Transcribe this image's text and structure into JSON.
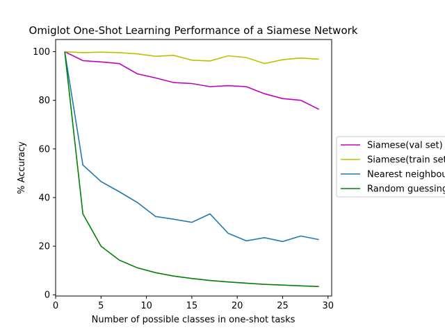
{
  "chart_data": {
    "type": "line",
    "title": "Omiglot One-Shot Learning Performance of a Siamese Network",
    "xlabel": "Number of possible classes in one-shot tasks",
    "ylabel": "% Accuracy",
    "xlim": [
      0,
      30.4
    ],
    "ylim": [
      -0.5,
      105
    ],
    "xticks": [
      0,
      5,
      10,
      15,
      20,
      25,
      30
    ],
    "yticks": [
      0,
      20,
      40,
      60,
      80,
      100
    ],
    "grid": false,
    "legend_position": "center-right-outside",
    "x": [
      1,
      3,
      5,
      7,
      9,
      11,
      13,
      15,
      17,
      19,
      21,
      23,
      25,
      27,
      29
    ],
    "series": [
      {
        "name": "Siamese(val set)",
        "color": "#bf00bf",
        "values": [
          100,
          96.3,
          95.8,
          95.1,
          90.9,
          89.2,
          87.3,
          86.9,
          85.6,
          86.0,
          85.6,
          82.7,
          80.7,
          80.0,
          76.3
        ]
      },
      {
        "name": "Siamese(train set)",
        "color": "#bfbf00",
        "values": [
          100,
          99.6,
          99.8,
          99.6,
          99.1,
          98.1,
          98.5,
          96.5,
          96.2,
          98.3,
          97.6,
          95.1,
          96.7,
          97.4,
          96.9
        ]
      },
      {
        "name": "Nearest neighbour",
        "color": "#1f77b4",
        "values": [
          100,
          53.4,
          46.6,
          42.4,
          38.0,
          32.2,
          31.1,
          29.8,
          33.3,
          25.3,
          22.2,
          23.5,
          21.9,
          24.2,
          22.7
        ]
      },
      {
        "name": "Random guessing",
        "color": "#008000",
        "values": [
          100,
          33.3,
          20.0,
          14.3,
          11.1,
          9.1,
          7.7,
          6.7,
          5.9,
          5.3,
          4.8,
          4.3,
          4.0,
          3.7,
          3.4
        ]
      }
    ]
  }
}
